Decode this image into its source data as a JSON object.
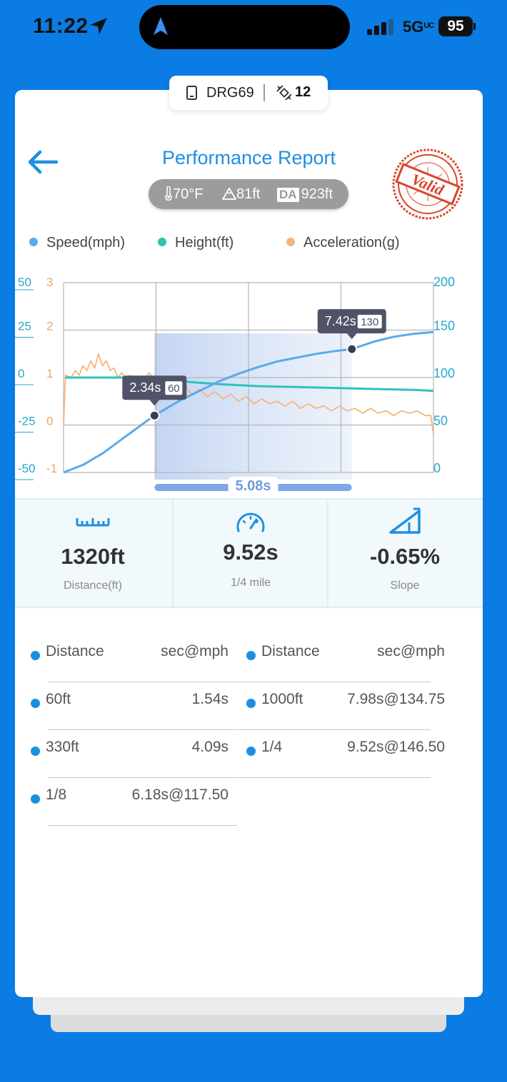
{
  "status_bar": {
    "time": "11:22",
    "network": "5G",
    "network_sup": "UC",
    "battery": "95"
  },
  "device": {
    "name": "DRG69",
    "satellites": "12"
  },
  "header": {
    "title": "Performance Report",
    "stamp_text": "Valid"
  },
  "conditions": {
    "temperature": "70°F",
    "altitude": "81ft",
    "da_label": "DA",
    "density_altitude": "923ft"
  },
  "colors": {
    "speed": "#5aaae8",
    "height": "#2cc3b9",
    "acceleration": "#f5b57c",
    "accent": "#1f8fe0",
    "stamp": "#d9442a"
  },
  "chart_data": {
    "type": "line",
    "series": [
      {
        "name": "Speed(mph)",
        "axis": "right",
        "points": [
          [
            0,
            0
          ],
          [
            0.5,
            8
          ],
          [
            1.0,
            20
          ],
          [
            1.5,
            35
          ],
          [
            2.0,
            50
          ],
          [
            2.34,
            60
          ],
          [
            3.0,
            76
          ],
          [
            3.5,
            86
          ],
          [
            4.0,
            96
          ],
          [
            4.5,
            104
          ],
          [
            5.0,
            111
          ],
          [
            5.5,
            117
          ],
          [
            6.0,
            121
          ],
          [
            6.5,
            125
          ],
          [
            7.0,
            128
          ],
          [
            7.42,
            130
          ],
          [
            8.0,
            138
          ],
          [
            8.5,
            143
          ],
          [
            9.0,
            146
          ],
          [
            9.52,
            148
          ]
        ]
      },
      {
        "name": "Height(ft)",
        "axis": "left-teal",
        "points": [
          [
            0.05,
            0
          ],
          [
            2.34,
            0
          ],
          [
            3.0,
            -2
          ],
          [
            4.0,
            -3.5
          ],
          [
            5.0,
            -4.5
          ],
          [
            6.0,
            -5
          ],
          [
            7.0,
            -5.5
          ],
          [
            8.0,
            -6
          ],
          [
            9.0,
            -6.5
          ],
          [
            9.52,
            -7
          ]
        ]
      },
      {
        "name": "Acceleration(g)",
        "axis": "left-orange",
        "points": [
          [
            0,
            0
          ],
          [
            0.05,
            1.05
          ],
          [
            0.2,
            1.0
          ],
          [
            0.3,
            1.15
          ],
          [
            0.4,
            1.05
          ],
          [
            0.5,
            1.25
          ],
          [
            0.6,
            1.15
          ],
          [
            0.7,
            1.35
          ],
          [
            0.8,
            1.2
          ],
          [
            0.9,
            1.5
          ],
          [
            1.0,
            1.25
          ],
          [
            1.1,
            1.35
          ],
          [
            1.2,
            1.15
          ],
          [
            1.3,
            1.2
          ],
          [
            1.4,
            1.0
          ],
          [
            1.5,
            1.1
          ],
          [
            1.6,
            0.95
          ],
          [
            1.7,
            1.05
          ],
          [
            1.8,
            0.9
          ],
          [
            1.9,
            1.0
          ],
          [
            2.0,
            0.85
          ],
          [
            2.2,
            1.1
          ],
          [
            2.34,
            0.95
          ],
          [
            2.5,
            0.8
          ],
          [
            2.7,
            0.95
          ],
          [
            2.9,
            0.75
          ],
          [
            3.1,
            0.85
          ],
          [
            3.3,
            0.65
          ],
          [
            3.5,
            0.75
          ],
          [
            3.7,
            0.6
          ],
          [
            3.9,
            0.7
          ],
          [
            4.1,
            0.55
          ],
          [
            4.3,
            0.65
          ],
          [
            4.5,
            0.5
          ],
          [
            4.7,
            0.6
          ],
          [
            4.9,
            0.45
          ],
          [
            5.1,
            0.55
          ],
          [
            5.3,
            0.45
          ],
          [
            5.5,
            0.5
          ],
          [
            5.7,
            0.4
          ],
          [
            5.9,
            0.5
          ],
          [
            6.1,
            0.35
          ],
          [
            6.3,
            0.45
          ],
          [
            6.5,
            0.35
          ],
          [
            6.7,
            0.4
          ],
          [
            6.9,
            0.3
          ],
          [
            7.1,
            0.4
          ],
          [
            7.3,
            0.3
          ],
          [
            7.5,
            0.35
          ],
          [
            7.7,
            0.25
          ],
          [
            7.9,
            0.35
          ],
          [
            8.1,
            0.25
          ],
          [
            8.3,
            0.3
          ],
          [
            8.5,
            0.2
          ],
          [
            8.7,
            0.3
          ],
          [
            8.9,
            0.25
          ],
          [
            9.1,
            0.3
          ],
          [
            9.3,
            0.2
          ],
          [
            9.45,
            0.2
          ],
          [
            9.52,
            -0.2
          ]
        ]
      }
    ],
    "x_range": [
      0,
      9.52
    ],
    "axis_left_teal_ticks": [
      "50",
      "25",
      "0",
      "-25",
      "-50"
    ],
    "axis_left_teal_range": [
      -50,
      50
    ],
    "axis_left_orange_ticks": [
      "3",
      "2",
      "1",
      "0",
      "-1"
    ],
    "axis_left_orange_range": [
      -1,
      3
    ],
    "axis_right_ticks": [
      "200",
      "150",
      "100",
      "50",
      "0"
    ],
    "axis_right_range": [
      0,
      200
    ],
    "grid": true,
    "markers": [
      {
        "t": 2.34,
        "speed": 60,
        "time_label": "2.34s",
        "speed_label": "60"
      },
      {
        "t": 7.42,
        "speed": 130,
        "time_label": "7.42s",
        "speed_label": "130"
      }
    ],
    "selection": {
      "start": 2.34,
      "end": 7.42,
      "label": "5.08s"
    }
  },
  "stats": [
    {
      "icon": "ruler-icon",
      "value": "1320ft",
      "label": "Distance(ft)"
    },
    {
      "icon": "speedometer-icon",
      "value": "9.52s",
      "label": "1/4 mile"
    },
    {
      "icon": "slope-icon",
      "value": "-0.65%",
      "label": "Slope"
    }
  ],
  "table": {
    "left": [
      {
        "name": "Distance",
        "value": "sec@mph"
      },
      {
        "name": "60ft",
        "value": "1.54s"
      },
      {
        "name": "330ft",
        "value": "4.09s"
      },
      {
        "name": "1/8",
        "value": "6.18s@117.50"
      }
    ],
    "right": [
      {
        "name": "Distance",
        "value": "sec@mph"
      },
      {
        "name": "1000ft",
        "value": "7.98s@134.75"
      },
      {
        "name": "1/4",
        "value": "9.52s@146.50"
      }
    ]
  }
}
